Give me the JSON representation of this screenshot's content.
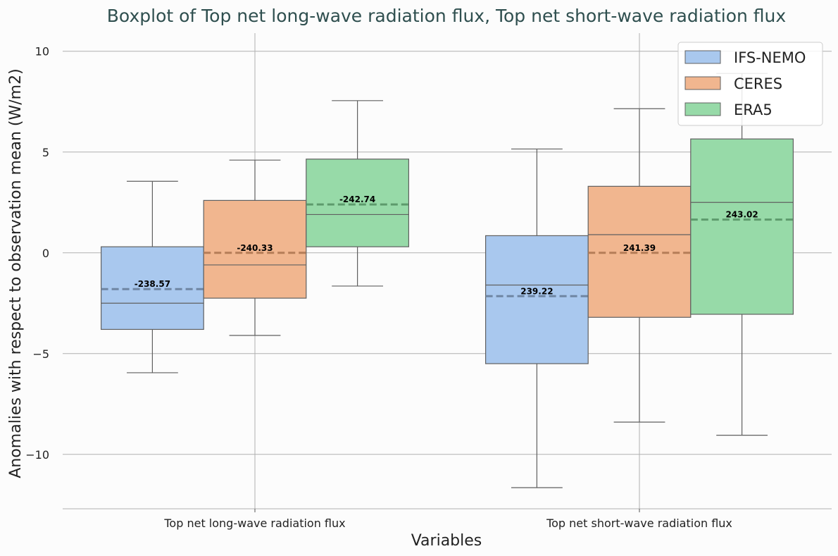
{
  "chart_data": {
    "type": "box",
    "title": "Boxplot of Top net long-wave radiation flux, Top net short-wave radiation flux",
    "xlabel": "Variables",
    "ylabel": "Anomalies with respect to observation mean (W/m2)",
    "categories": [
      "Top net long-wave radiation flux",
      "Top net short-wave radiation flux"
    ],
    "ylim": [
      -12.7,
      10.9
    ],
    "yticks": [
      10,
      5,
      0,
      -5,
      -10
    ],
    "ytick_labels": [
      "10",
      "5",
      "0",
      "−5",
      "−10"
    ],
    "grid": true,
    "legend_position": "top-right",
    "series": [
      {
        "name": "IFS-NEMO",
        "color": "#a9c8ee",
        "mean_color": "#6f86a3",
        "boxes": [
          {
            "whisker_low": -5.95,
            "q1": -3.8,
            "median": -2.5,
            "q3": 0.3,
            "whisker_high": 3.55,
            "mean": -1.8,
            "mean_label": "-238.57"
          },
          {
            "whisker_low": -11.65,
            "q1": -5.5,
            "median": -1.6,
            "q3": 0.85,
            "whisker_high": 5.15,
            "mean": -2.15,
            "mean_label": "239.22"
          }
        ]
      },
      {
        "name": "CERES",
        "color": "#f1b68f",
        "mean_color": "#b57d58",
        "boxes": [
          {
            "whisker_low": -4.1,
            "q1": -2.25,
            "median": -0.6,
            "q3": 2.6,
            "whisker_high": 4.6,
            "mean": 0.0,
            "mean_label": "-240.33"
          },
          {
            "whisker_low": -8.4,
            "q1": -3.2,
            "median": 0.9,
            "q3": 3.3,
            "whisker_high": 7.15,
            "mean": 0.0,
            "mean_label": "241.39"
          }
        ]
      },
      {
        "name": "ERA5",
        "color": "#97daa8",
        "mean_color": "#5d9a6c",
        "boxes": [
          {
            "whisker_low": -1.65,
            "q1": 0.3,
            "median": 1.9,
            "q3": 4.65,
            "whisker_high": 7.55,
            "mean": 2.4,
            "mean_label": "-242.74"
          },
          {
            "whisker_low": -9.05,
            "q1": -3.05,
            "median": 2.5,
            "q3": 5.65,
            "whisker_high": 8.9,
            "mean": 1.65,
            "mean_label": "243.02"
          }
        ]
      }
    ]
  }
}
